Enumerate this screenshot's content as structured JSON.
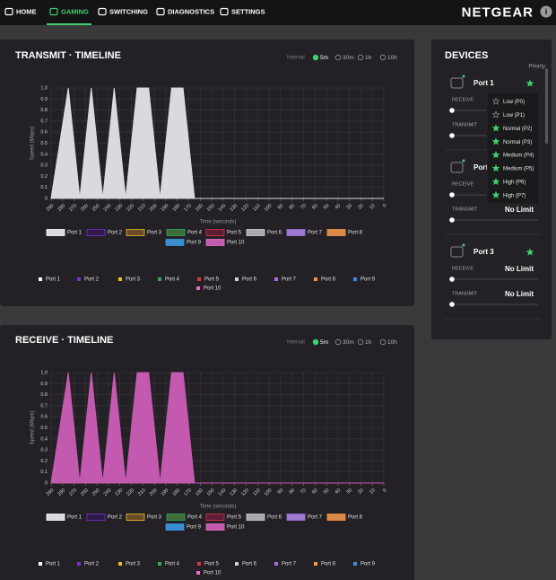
{
  "nav": {
    "items": [
      "HOME",
      "GAMING",
      "SWITCHING",
      "DIAGNOSTICS",
      "SETTINGS"
    ],
    "active": 1,
    "brand": "NETGEAR"
  },
  "chart_data": [
    {
      "type": "area",
      "title": "TRANSMIT · TIMELINE",
      "interval": {
        "label": "Interval",
        "options": [
          "5m",
          "30m",
          "1h",
          "10h"
        ],
        "selected": 0
      },
      "xlabel": "Time (seconds)",
      "ylabel": "Speed (Mbps)",
      "x": [
        290,
        275,
        265,
        255,
        245,
        235,
        225,
        215,
        205,
        195,
        185,
        175,
        165,
        0
      ],
      "xlim": [
        290,
        0
      ],
      "xticks": [
        290,
        280,
        270,
        260,
        250,
        240,
        230,
        220,
        210,
        200,
        190,
        180,
        170,
        160,
        150,
        140,
        130,
        120,
        110,
        100,
        90,
        80,
        70,
        60,
        50,
        40,
        30,
        20,
        10,
        0
      ],
      "ylim": [
        0,
        1
      ],
      "yticks": [
        0,
        0.1,
        0.2,
        0.3,
        0.4,
        0.5,
        0.6,
        0.7,
        0.8,
        0.9,
        {
          "value": 1,
          "label": "1.0"
        }
      ],
      "grid": true,
      "series": [
        {
          "name": "Port 1",
          "color": "#ffffff",
          "fill": "#dcd8e0",
          "values": [
            0,
            1,
            0,
            1,
            0,
            1,
            0,
            1,
            1,
            0,
            1,
            1,
            0,
            0
          ]
        },
        {
          "name": "Port 2",
          "color": "#7b2fc9",
          "fill": "#2d1a4a",
          "values": [
            null,
            null,
            null,
            null,
            null,
            null,
            null,
            null,
            null,
            null,
            null,
            null,
            null,
            null
          ]
        },
        {
          "name": "Port 3",
          "color": "#e8c020",
          "fill": "#6a4a28",
          "values": [
            null,
            null,
            null,
            null,
            null,
            null,
            null,
            null,
            null,
            null,
            null,
            null,
            null,
            null
          ]
        },
        {
          "name": "Port 4",
          "color": "#2fae5a",
          "fill": "#3f6b3a",
          "values": [
            null,
            null,
            null,
            null,
            null,
            null,
            null,
            null,
            null,
            null,
            null,
            null,
            null,
            null
          ]
        },
        {
          "name": "Port 5",
          "color": "#e0304a",
          "fill": "#5a1e36",
          "values": [
            null,
            null,
            null,
            null,
            null,
            null,
            null,
            null,
            null,
            null,
            null,
            null,
            null,
            null
          ]
        },
        {
          "name": "Port 6",
          "color": "#d0d0d0",
          "fill": "#a9a9a9",
          "values": [
            null,
            null,
            null,
            null,
            null,
            null,
            null,
            null,
            null,
            null,
            null,
            null,
            null,
            null
          ]
        },
        {
          "name": "Port 7",
          "color": "#a86ee0",
          "fill": "#9b7ad0",
          "values": [
            null,
            null,
            null,
            null,
            null,
            null,
            null,
            null,
            null,
            null,
            null,
            null,
            null,
            null
          ]
        },
        {
          "name": "Port 8",
          "color": "#f39a3a",
          "fill": "#d98a4a",
          "values": [
            null,
            null,
            null,
            null,
            null,
            null,
            null,
            null,
            null,
            null,
            null,
            null,
            null,
            null
          ]
        },
        {
          "name": "Port 9",
          "color": "#3a8fe0",
          "fill": "#3a8fd0",
          "values": [
            null,
            null,
            null,
            null,
            null,
            null,
            null,
            null,
            null,
            null,
            null,
            null,
            null,
            null
          ]
        },
        {
          "name": "Port 10",
          "color": "#e070c8",
          "fill": "#c45ab0",
          "values": [
            null,
            null,
            null,
            null,
            null,
            null,
            null,
            null,
            null,
            null,
            null,
            null,
            null,
            null
          ]
        }
      ]
    },
    {
      "type": "area",
      "title": "RECEIVE · TIMELINE",
      "interval": {
        "label": "Interval",
        "options": [
          "5m",
          "30m",
          "1h",
          "10h"
        ],
        "selected": 0
      },
      "xlabel": "Time (seconds)",
      "ylabel": "Speed (Mbps)",
      "x": [
        290,
        275,
        265,
        255,
        245,
        235,
        225,
        215,
        205,
        195,
        185,
        175,
        165,
        0
      ],
      "xlim": [
        290,
        0
      ],
      "xticks": [
        290,
        280,
        270,
        260,
        250,
        240,
        230,
        220,
        210,
        200,
        190,
        180,
        170,
        160,
        150,
        140,
        130,
        120,
        110,
        100,
        90,
        80,
        70,
        60,
        50,
        40,
        30,
        20,
        10,
        0
      ],
      "ylim": [
        0,
        1
      ],
      "yticks": [
        0,
        0.1,
        0.2,
        0.3,
        0.4,
        0.5,
        0.6,
        0.7,
        0.8,
        0.9,
        {
          "value": 1,
          "label": "1.0"
        }
      ],
      "grid": true,
      "series": [
        {
          "name": "Port 1",
          "color": "#ffffff",
          "fill": "#dcd8e0",
          "values": [
            null,
            null,
            null,
            null,
            null,
            null,
            null,
            null,
            null,
            null,
            null,
            null,
            null,
            null
          ]
        },
        {
          "name": "Port 2",
          "color": "#7b2fc9",
          "fill": "#2d1a4a",
          "values": [
            null,
            null,
            null,
            null,
            null,
            null,
            null,
            null,
            null,
            null,
            null,
            null,
            null,
            null
          ]
        },
        {
          "name": "Port 3",
          "color": "#e8c020",
          "fill": "#6a4a28",
          "values": [
            null,
            null,
            null,
            null,
            null,
            null,
            null,
            null,
            null,
            null,
            null,
            null,
            null,
            null
          ]
        },
        {
          "name": "Port 4",
          "color": "#2fae5a",
          "fill": "#3f6b3a",
          "values": [
            null,
            null,
            null,
            null,
            null,
            null,
            null,
            null,
            null,
            null,
            null,
            null,
            null,
            null
          ]
        },
        {
          "name": "Port 5",
          "color": "#e0304a",
          "fill": "#5a1e36",
          "values": [
            null,
            null,
            null,
            null,
            null,
            null,
            null,
            null,
            null,
            null,
            null,
            null,
            null,
            null
          ]
        },
        {
          "name": "Port 6",
          "color": "#d0d0d0",
          "fill": "#a9a9a9",
          "values": [
            null,
            null,
            null,
            null,
            null,
            null,
            null,
            null,
            null,
            null,
            null,
            null,
            null,
            null
          ]
        },
        {
          "name": "Port 7",
          "color": "#a86ee0",
          "fill": "#9b7ad0",
          "values": [
            null,
            null,
            null,
            null,
            null,
            null,
            null,
            null,
            null,
            null,
            null,
            null,
            null,
            null
          ]
        },
        {
          "name": "Port 8",
          "color": "#f39a3a",
          "fill": "#d98a4a",
          "values": [
            null,
            null,
            null,
            null,
            null,
            null,
            null,
            null,
            null,
            null,
            null,
            null,
            null,
            null
          ]
        },
        {
          "name": "Port 9",
          "color": "#3a8fe0",
          "fill": "#3a8fd0",
          "values": [
            null,
            null,
            null,
            null,
            null,
            null,
            null,
            null,
            null,
            null,
            null,
            null,
            null,
            null
          ]
        },
        {
          "name": "Port 10",
          "color": "#e070c8",
          "fill": "#c45ab0",
          "values": [
            0,
            1,
            0,
            1,
            0,
            1,
            0,
            1,
            1,
            0,
            1,
            1,
            0,
            0
          ]
        }
      ]
    }
  ],
  "devices": {
    "title": "DEVICES",
    "priority_label": "Priority",
    "receive_label": "RECEIVE",
    "transmit_label": "TRANSMIT",
    "ports": [
      {
        "name": "Port 1"
      },
      {
        "name": "Port 2",
        "transmit_limit": "No Limit"
      },
      {
        "name": "Port 3",
        "receive_limit": "No Limit",
        "transmit_limit": "No Limit"
      }
    ],
    "priority_options": [
      "Low (P0)",
      "Low (P1)",
      "Normal (P2)",
      "Normal (P3)",
      "Medium (P4)",
      "Medium (P5)",
      "High (P6)",
      "High (P7)"
    ]
  }
}
